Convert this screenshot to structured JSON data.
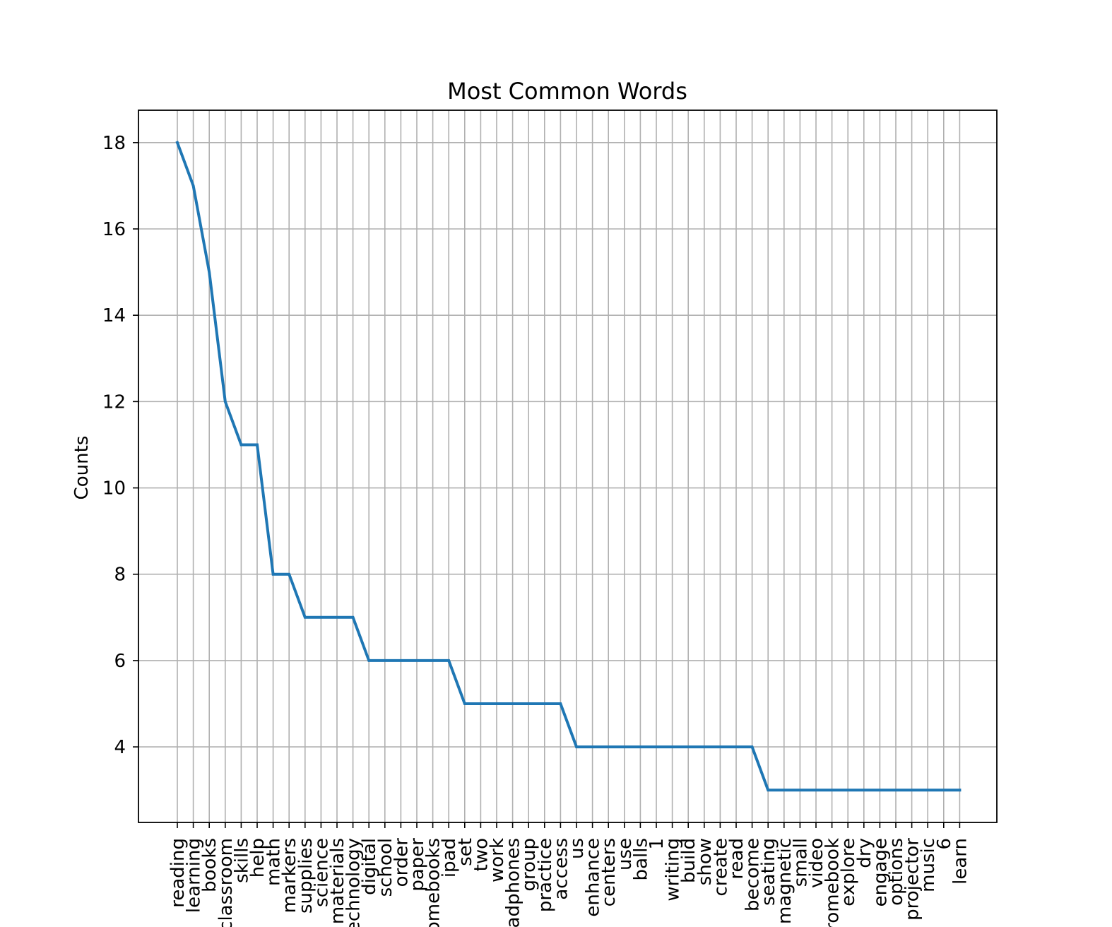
{
  "chart_data": {
    "type": "line",
    "title": "Most Common Words",
    "xlabel": "",
    "ylabel": "Counts",
    "categories": [
      "reading",
      "learning",
      "books",
      "classroom",
      "skills",
      "help",
      "math",
      "markers",
      "supplies",
      "science",
      "materials",
      "technology",
      "digital",
      "school",
      "order",
      "paper",
      "chromebooks",
      "ipad",
      "set",
      "two",
      "work",
      "headphones",
      "group",
      "practice",
      "access",
      "us",
      "enhance",
      "centers",
      "use",
      "balls",
      "1",
      "writing",
      "build",
      "show",
      "create",
      "read",
      "become",
      "seating",
      "magnetic",
      "small",
      "video",
      "chromebook",
      "explore",
      "dry",
      "engage",
      "options",
      "projector",
      "music",
      "6",
      "learn"
    ],
    "series": [
      {
        "values": [
          18,
          17,
          15,
          12,
          11,
          11,
          8,
          8,
          7,
          7,
          7,
          7,
          6,
          6,
          6,
          6,
          6,
          6,
          5,
          5,
          5,
          5,
          5,
          5,
          5,
          4,
          4,
          4,
          4,
          4,
          4,
          4,
          4,
          4,
          4,
          4,
          4,
          3,
          3,
          3,
          3,
          3,
          3,
          3,
          3,
          3,
          3,
          3,
          3,
          3
        ],
        "color": "#1f77b4"
      }
    ],
    "y_ticks": [
      4,
      6,
      8,
      10,
      12,
      14,
      16,
      18
    ],
    "ylim": [
      2.25,
      18.75
    ],
    "grid": true,
    "legend": "none"
  }
}
